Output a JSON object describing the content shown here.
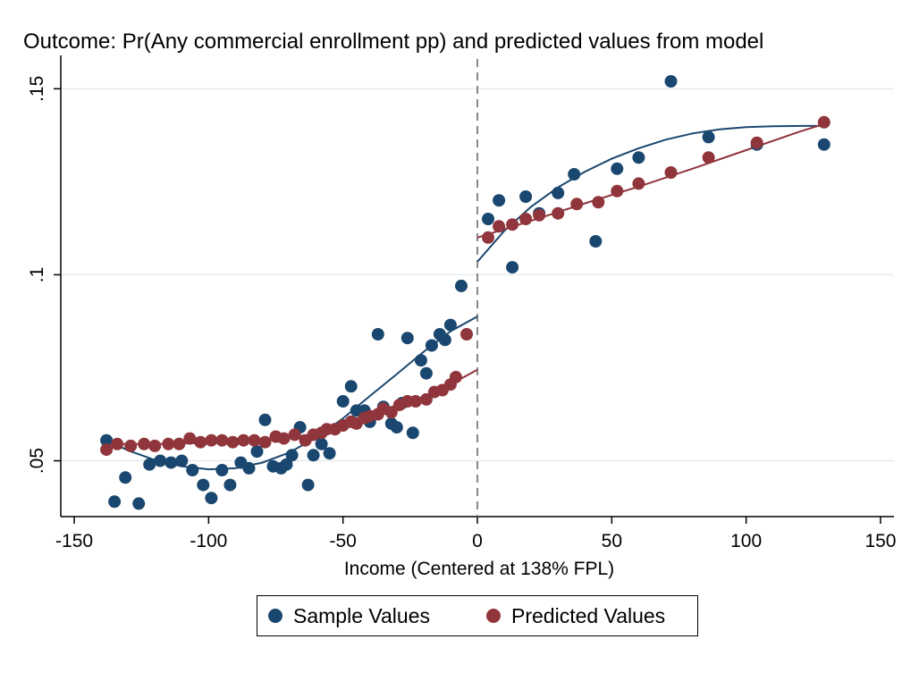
{
  "chart_data": {
    "type": "scatter",
    "title": "Outcome: Pr(Any commercial enrollment pp) and predicted values from model",
    "xlabel": "Income (Centered at 138% FPL)",
    "ylabel": "",
    "xlim": [
      -155,
      155
    ],
    "ylim": [
      0.035,
      0.158
    ],
    "xticks": [
      -150,
      -100,
      -50,
      0,
      50,
      100,
      150
    ],
    "xtick_labels": [
      "-150",
      "-100",
      "-50",
      "0",
      "50",
      "100",
      "150"
    ],
    "yticks": [
      0.05,
      0.1,
      0.15
    ],
    "ytick_labels": [
      ".05",
      ".1",
      ".15"
    ],
    "grid": "horizontal",
    "cutoff_line": 0,
    "legend_position": "bottom",
    "series": [
      {
        "name": "Sample Values",
        "color": "#1a476f",
        "x": [
          -138,
          -135,
          -131,
          -126,
          -122,
          -118,
          -114,
          -110,
          -106,
          -102,
          -99,
          -95,
          -92,
          -88,
          -85,
          -82,
          -79,
          -76,
          -73,
          -71,
          -69,
          -66,
          -63,
          -61,
          -58,
          -55,
          -53,
          -50,
          -47,
          -45,
          -42,
          -40,
          -37,
          -35,
          -32,
          -30,
          -28,
          -26,
          -24,
          -21,
          -19,
          -17,
          -14,
          -12,
          -10,
          -6,
          4,
          8,
          13,
          18,
          23,
          30,
          36,
          44,
          52,
          60,
          72,
          86,
          104,
          129
        ],
        "y": [
          0.0555,
          0.039,
          0.0455,
          0.0385,
          0.049,
          0.05,
          0.0495,
          0.05,
          0.0475,
          0.0435,
          0.04,
          0.0475,
          0.0435,
          0.0495,
          0.048,
          0.0525,
          0.061,
          0.0485,
          0.048,
          0.049,
          0.0515,
          0.059,
          0.0435,
          0.0515,
          0.0545,
          0.052,
          0.0585,
          0.066,
          0.07,
          0.0635,
          0.0635,
          0.0605,
          0.084,
          0.0645,
          0.06,
          0.059,
          0.0655,
          0.083,
          0.0575,
          0.077,
          0.0735,
          0.081,
          0.084,
          0.0825,
          0.0865,
          0.097,
          0.115,
          0.12,
          0.102,
          0.121,
          0.1165,
          0.122,
          0.127,
          0.109,
          0.1285,
          0.1315,
          0.152,
          0.137,
          0.135,
          0.135
        ]
      },
      {
        "name": "Predicted Values",
        "color": "#90353b",
        "x": [
          -138,
          -134,
          -129,
          -124,
          -120,
          -115,
          -111,
          -107,
          -103,
          -99,
          -95,
          -91,
          -87,
          -83,
          -79,
          -75,
          -72,
          -68,
          -64,
          -61,
          -58,
          -56,
          -53,
          -50,
          -47,
          -45,
          -42,
          -40,
          -37,
          -35,
          -32,
          -29,
          -26,
          -23,
          -19,
          -16,
          -13,
          -10,
          -8,
          -4,
          4,
          8,
          13,
          18,
          23,
          30,
          37,
          45,
          52,
          60,
          72,
          86,
          104,
          129
        ],
        "y": [
          0.053,
          0.0545,
          0.054,
          0.0545,
          0.054,
          0.0545,
          0.0545,
          0.056,
          0.055,
          0.0555,
          0.0555,
          0.055,
          0.0555,
          0.0555,
          0.055,
          0.0565,
          0.056,
          0.057,
          0.0555,
          0.057,
          0.0575,
          0.0585,
          0.0585,
          0.0595,
          0.0605,
          0.06,
          0.0615,
          0.062,
          0.0625,
          0.064,
          0.063,
          0.065,
          0.066,
          0.066,
          0.0665,
          0.0685,
          0.069,
          0.0705,
          0.0725,
          0.084,
          0.11,
          0.113,
          0.1135,
          0.115,
          0.116,
          0.1165,
          0.119,
          0.1195,
          0.1225,
          0.1245,
          0.1275,
          0.1315,
          0.1355,
          0.141
        ]
      }
    ],
    "fit_lines": [
      {
        "color": "#1a476f",
        "x": [
          -138,
          -130,
          -120,
          -110,
          -100,
          -90,
          -80,
          -70,
          -60,
          -50,
          -40,
          -30,
          -20,
          -10,
          0
        ],
        "y": [
          0.0555,
          0.0528,
          0.0502,
          0.0485,
          0.0477,
          0.048,
          0.0495,
          0.0522,
          0.0562,
          0.0614,
          0.0674,
          0.0733,
          0.0793,
          0.0848,
          0.0888
        ]
      },
      {
        "color": "#1a476f",
        "x": [
          0,
          10,
          20,
          30,
          40,
          50,
          60,
          70,
          80,
          90,
          100,
          110,
          120,
          129
        ],
        "y": [
          0.1035,
          0.1118,
          0.1183,
          0.1235,
          0.1277,
          0.1312,
          0.134,
          0.1363,
          0.138,
          0.1391,
          0.1397,
          0.1399,
          0.14,
          0.14
        ]
      },
      {
        "color": "#90353b",
        "x": [
          -138,
          -120,
          -100,
          -80,
          -60,
          -50,
          -40,
          -30,
          -20,
          -10,
          0
        ],
        "y": [
          0.0545,
          0.0545,
          0.0548,
          0.0555,
          0.0572,
          0.0595,
          0.062,
          0.065,
          0.0672,
          0.0705,
          0.0745
        ]
      },
      {
        "color": "#90353b",
        "x": [
          0,
          20,
          40,
          60,
          80,
          100,
          120,
          129
        ],
        "y": [
          0.11,
          0.1145,
          0.1192,
          0.1237,
          0.1285,
          0.1335,
          0.1385,
          0.1405
        ]
      }
    ]
  }
}
